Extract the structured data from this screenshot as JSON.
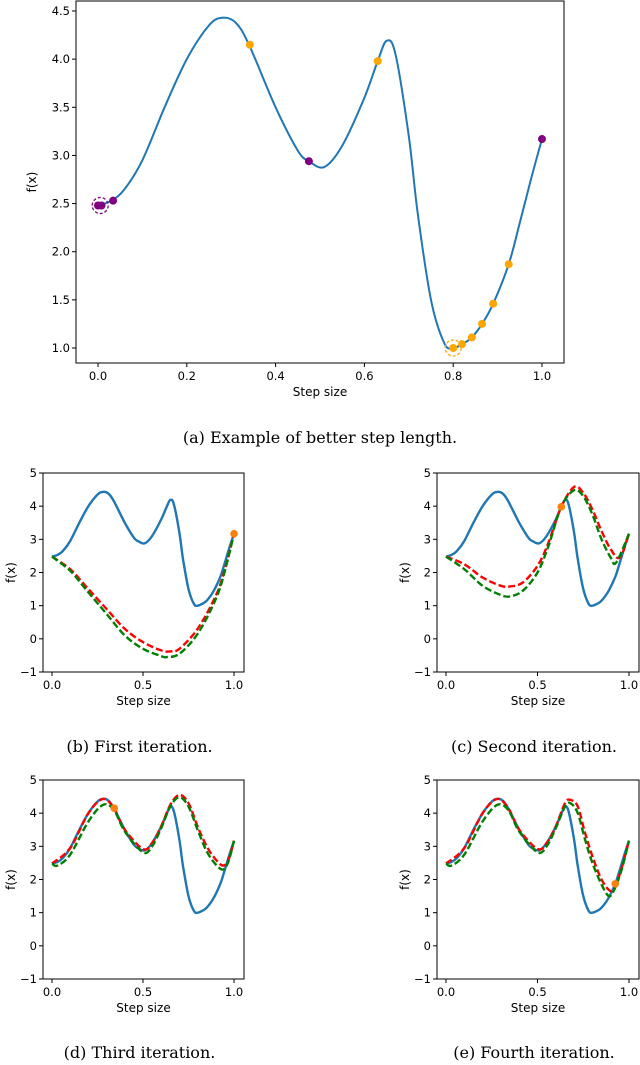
{
  "chart_data": [
    {
      "id": "a",
      "type": "line",
      "caption": "(a) Example of better step length.",
      "xlabel": "Step size",
      "ylabel": "f(x)",
      "xlim": [
        -0.05,
        1.05
      ],
      "ylim": [
        0.85,
        4.55
      ],
      "xticks": [
        0.0,
        0.2,
        0.4,
        0.6,
        0.8,
        1.0
      ],
      "xtick_labels": [
        "0.0",
        "0.2",
        "0.4",
        "0.6",
        "0.8",
        "1.0"
      ],
      "yticks": [
        1.0,
        1.5,
        2.0,
        2.5,
        3.0,
        3.5,
        4.0,
        4.5
      ],
      "ytick_labels": [
        "1.0",
        "1.5",
        "2.0",
        "2.5",
        "3.0",
        "3.5",
        "4.0",
        "4.5"
      ],
      "series": [
        {
          "name": "f(x)",
          "color": "#1f77b4",
          "style": "solid",
          "x": [
            0,
            0.03,
            0.06,
            0.1,
            0.15,
            0.2,
            0.25,
            0.28,
            0.31,
            0.34,
            0.4,
            0.45,
            0.475,
            0.51,
            0.55,
            0.6,
            0.63,
            0.65,
            0.67,
            0.7,
            0.72,
            0.75,
            0.78,
            0.8,
            0.82,
            0.842,
            0.865,
            0.89,
            0.925,
            0.95,
            0.975,
            1.0
          ],
          "y": [
            2.48,
            2.53,
            2.65,
            2.95,
            3.5,
            4.0,
            4.35,
            4.43,
            4.38,
            4.15,
            3.5,
            3.05,
            2.94,
            2.88,
            3.1,
            3.6,
            3.98,
            4.19,
            4.05,
            3.2,
            2.4,
            1.5,
            1.05,
            1.0,
            1.04,
            1.11,
            1.25,
            1.46,
            1.87,
            2.3,
            2.75,
            3.17
          ]
        }
      ],
      "points": [
        {
          "x": 0.0,
          "y": 2.48,
          "color": "#800080"
        },
        {
          "x": 0.008,
          "y": 2.48,
          "color": "#800080"
        },
        {
          "x": 0.034,
          "y": 2.53,
          "color": "#800080"
        },
        {
          "x": 0.475,
          "y": 2.94,
          "color": "#800080"
        },
        {
          "x": 1.0,
          "y": 3.17,
          "color": "#800080"
        },
        {
          "x": 0.342,
          "y": 4.15,
          "color": "#ffa500"
        },
        {
          "x": 0.63,
          "y": 3.98,
          "color": "#ffa500"
        },
        {
          "x": 0.8,
          "y": 1.0,
          "color": "#ffa500"
        },
        {
          "x": 0.82,
          "y": 1.04,
          "color": "#ffa500"
        },
        {
          "x": 0.842,
          "y": 1.11,
          "color": "#ffa500"
        },
        {
          "x": 0.865,
          "y": 1.25,
          "color": "#ffa500"
        },
        {
          "x": 0.89,
          "y": 1.46,
          "color": "#ffa500"
        },
        {
          "x": 0.925,
          "y": 1.87,
          "color": "#ffa500"
        }
      ],
      "highlight_circles": [
        {
          "x": 0.005,
          "y": 2.48,
          "color": "#800080"
        },
        {
          "x": 0.8,
          "y": 1.0,
          "color": "#ffa500"
        }
      ]
    },
    {
      "id": "b",
      "type": "line",
      "caption": "(b) First iteration.",
      "xlabel": "Step size",
      "ylabel": "f(x)",
      "xlim": [
        -0.05,
        1.05
      ],
      "ylim": [
        -1,
        5
      ],
      "xticks": [
        0.0,
        0.5,
        1.0
      ],
      "xtick_labels": [
        "0.0",
        "0.5",
        "1.0"
      ],
      "yticks": [
        -1,
        0,
        1,
        2,
        3,
        4,
        5
      ],
      "ytick_labels": [
        "−1",
        "0",
        "1",
        "2",
        "3",
        "4",
        "5"
      ],
      "series": [
        {
          "name": "red-model",
          "color": "#ff0000",
          "style": "dashed",
          "x": [
            0,
            0.1,
            0.2,
            0.3,
            0.4,
            0.5,
            0.6,
            0.65,
            0.7,
            0.8,
            0.9,
            0.95,
            1.0
          ],
          "y": [
            2.48,
            2.1,
            1.5,
            0.9,
            0.3,
            -0.1,
            -0.35,
            -0.38,
            -0.3,
            0.3,
            1.3,
            2.1,
            3.17
          ]
        },
        {
          "name": "green-model",
          "color": "#008000",
          "style": "dashed",
          "x": [
            0,
            0.1,
            0.2,
            0.3,
            0.4,
            0.5,
            0.6,
            0.63,
            0.7,
            0.8,
            0.9,
            0.95,
            1.0
          ],
          "y": [
            2.48,
            2.05,
            1.4,
            0.75,
            0.1,
            -0.3,
            -0.52,
            -0.55,
            -0.45,
            0.15,
            1.2,
            2.05,
            3.17
          ]
        }
      ],
      "points": [
        {
          "x": 1.0,
          "y": 3.17,
          "color": "#ff7f0e"
        }
      ]
    },
    {
      "id": "c",
      "type": "line",
      "caption": "(c) Second iteration.",
      "xlabel": "Step size",
      "ylabel": "f(x)",
      "xlim": [
        -0.05,
        1.05
      ],
      "ylim": [
        -1,
        5
      ],
      "xticks": [
        0.0,
        0.5,
        1.0
      ],
      "xtick_labels": [
        "0.0",
        "0.5",
        "1.0"
      ],
      "yticks": [
        -1,
        0,
        1,
        2,
        3,
        4,
        5
      ],
      "ytick_labels": [
        "−1",
        "0",
        "1",
        "2",
        "3",
        "4",
        "5"
      ],
      "series": [
        {
          "name": "red-model",
          "color": "#ff0000",
          "style": "dashed",
          "x": [
            0,
            0.1,
            0.2,
            0.3,
            0.35,
            0.42,
            0.5,
            0.56,
            0.63,
            0.7,
            0.75,
            0.8,
            0.85,
            0.9,
            0.95,
            1.0
          ],
          "y": [
            2.48,
            2.25,
            1.85,
            1.6,
            1.58,
            1.7,
            2.2,
            2.9,
            3.98,
            4.58,
            4.4,
            3.9,
            3.25,
            2.7,
            2.45,
            3.17
          ]
        },
        {
          "name": "green-model",
          "color": "#008000",
          "style": "dashed",
          "x": [
            0,
            0.1,
            0.2,
            0.3,
            0.35,
            0.42,
            0.5,
            0.56,
            0.63,
            0.7,
            0.75,
            0.8,
            0.85,
            0.9,
            0.93,
            1.0
          ],
          "y": [
            2.48,
            2.1,
            1.6,
            1.32,
            1.28,
            1.45,
            2.0,
            2.8,
            3.98,
            4.48,
            4.3,
            3.75,
            3.0,
            2.45,
            2.3,
            3.17
          ]
        }
      ],
      "points": [
        {
          "x": 0.63,
          "y": 3.98,
          "color": "#ff7f0e"
        }
      ]
    },
    {
      "id": "d",
      "type": "line",
      "caption": "(d) Third iteration.",
      "xlabel": "Step size",
      "ylabel": "f(x)",
      "xlim": [
        -0.05,
        1.05
      ],
      "ylim": [
        -1,
        5
      ],
      "xticks": [
        0.0,
        0.5,
        1.0
      ],
      "xtick_labels": [
        "0.0",
        "0.5",
        "1.0"
      ],
      "yticks": [
        -1,
        0,
        1,
        2,
        3,
        4,
        5
      ],
      "ytick_labels": [
        "−1",
        "0",
        "1",
        "2",
        "3",
        "4",
        "5"
      ],
      "series": [
        {
          "name": "red-model",
          "color": "#ff0000",
          "style": "dashed",
          "x": [
            0,
            0.1,
            0.2,
            0.28,
            0.34,
            0.4,
            0.5,
            0.55,
            0.6,
            0.65,
            0.7,
            0.75,
            0.8,
            0.85,
            0.9,
            0.94,
            0.97,
            1.0
          ],
          "y": [
            2.48,
            2.95,
            4.0,
            4.43,
            4.15,
            3.5,
            2.92,
            3.1,
            3.6,
            4.25,
            4.55,
            4.3,
            3.6,
            3.0,
            2.6,
            2.42,
            2.6,
            3.17
          ]
        },
        {
          "name": "green-model",
          "color": "#008000",
          "style": "dashed",
          "x": [
            0,
            0.03,
            0.1,
            0.2,
            0.28,
            0.34,
            0.4,
            0.5,
            0.55,
            0.6,
            0.65,
            0.7,
            0.75,
            0.8,
            0.85,
            0.9,
            0.94,
            0.97,
            1.0
          ],
          "y": [
            2.48,
            2.42,
            2.75,
            3.75,
            4.25,
            4.1,
            3.45,
            2.82,
            3.0,
            3.55,
            4.2,
            4.48,
            4.2,
            3.5,
            2.85,
            2.45,
            2.3,
            2.55,
            3.17
          ]
        }
      ],
      "points": [
        {
          "x": 0.342,
          "y": 4.15,
          "color": "#ff7f0e"
        }
      ]
    },
    {
      "id": "e",
      "type": "line",
      "caption": "(e) Fourth iteration.",
      "xlabel": "Step size",
      "ylabel": "f(x)",
      "xlim": [
        -0.05,
        1.05
      ],
      "ylim": [
        -1,
        5
      ],
      "xticks": [
        0.0,
        0.5,
        1.0
      ],
      "xtick_labels": [
        "0.0",
        "0.5",
        "1.0"
      ],
      "yticks": [
        -1,
        0,
        1,
        2,
        3,
        4,
        5
      ],
      "ytick_labels": [
        "−1",
        "0",
        "1",
        "2",
        "3",
        "4",
        "5"
      ],
      "series": [
        {
          "name": "red-model",
          "color": "#ff0000",
          "style": "dashed",
          "x": [
            0,
            0.1,
            0.2,
            0.28,
            0.34,
            0.4,
            0.5,
            0.55,
            0.6,
            0.65,
            0.68,
            0.72,
            0.76,
            0.8,
            0.85,
            0.9,
            0.93,
            0.96,
            1.0
          ],
          "y": [
            2.48,
            2.95,
            4.0,
            4.43,
            4.15,
            3.5,
            2.92,
            3.1,
            3.6,
            4.3,
            4.4,
            4.2,
            3.4,
            2.7,
            2.0,
            1.65,
            1.87,
            2.35,
            3.17
          ]
        },
        {
          "name": "green-model",
          "color": "#008000",
          "style": "dashed",
          "x": [
            0,
            0.03,
            0.1,
            0.2,
            0.28,
            0.34,
            0.4,
            0.5,
            0.55,
            0.6,
            0.65,
            0.68,
            0.72,
            0.76,
            0.8,
            0.85,
            0.89,
            0.92,
            0.96,
            1.0
          ],
          "y": [
            2.48,
            2.42,
            2.75,
            3.75,
            4.25,
            4.1,
            3.45,
            2.82,
            3.0,
            3.55,
            4.2,
            4.3,
            4.0,
            3.2,
            2.5,
            1.85,
            1.5,
            1.7,
            2.3,
            3.17
          ]
        }
      ],
      "points": [
        {
          "x": 0.925,
          "y": 1.87,
          "color": "#ff7f0e"
        }
      ]
    }
  ]
}
